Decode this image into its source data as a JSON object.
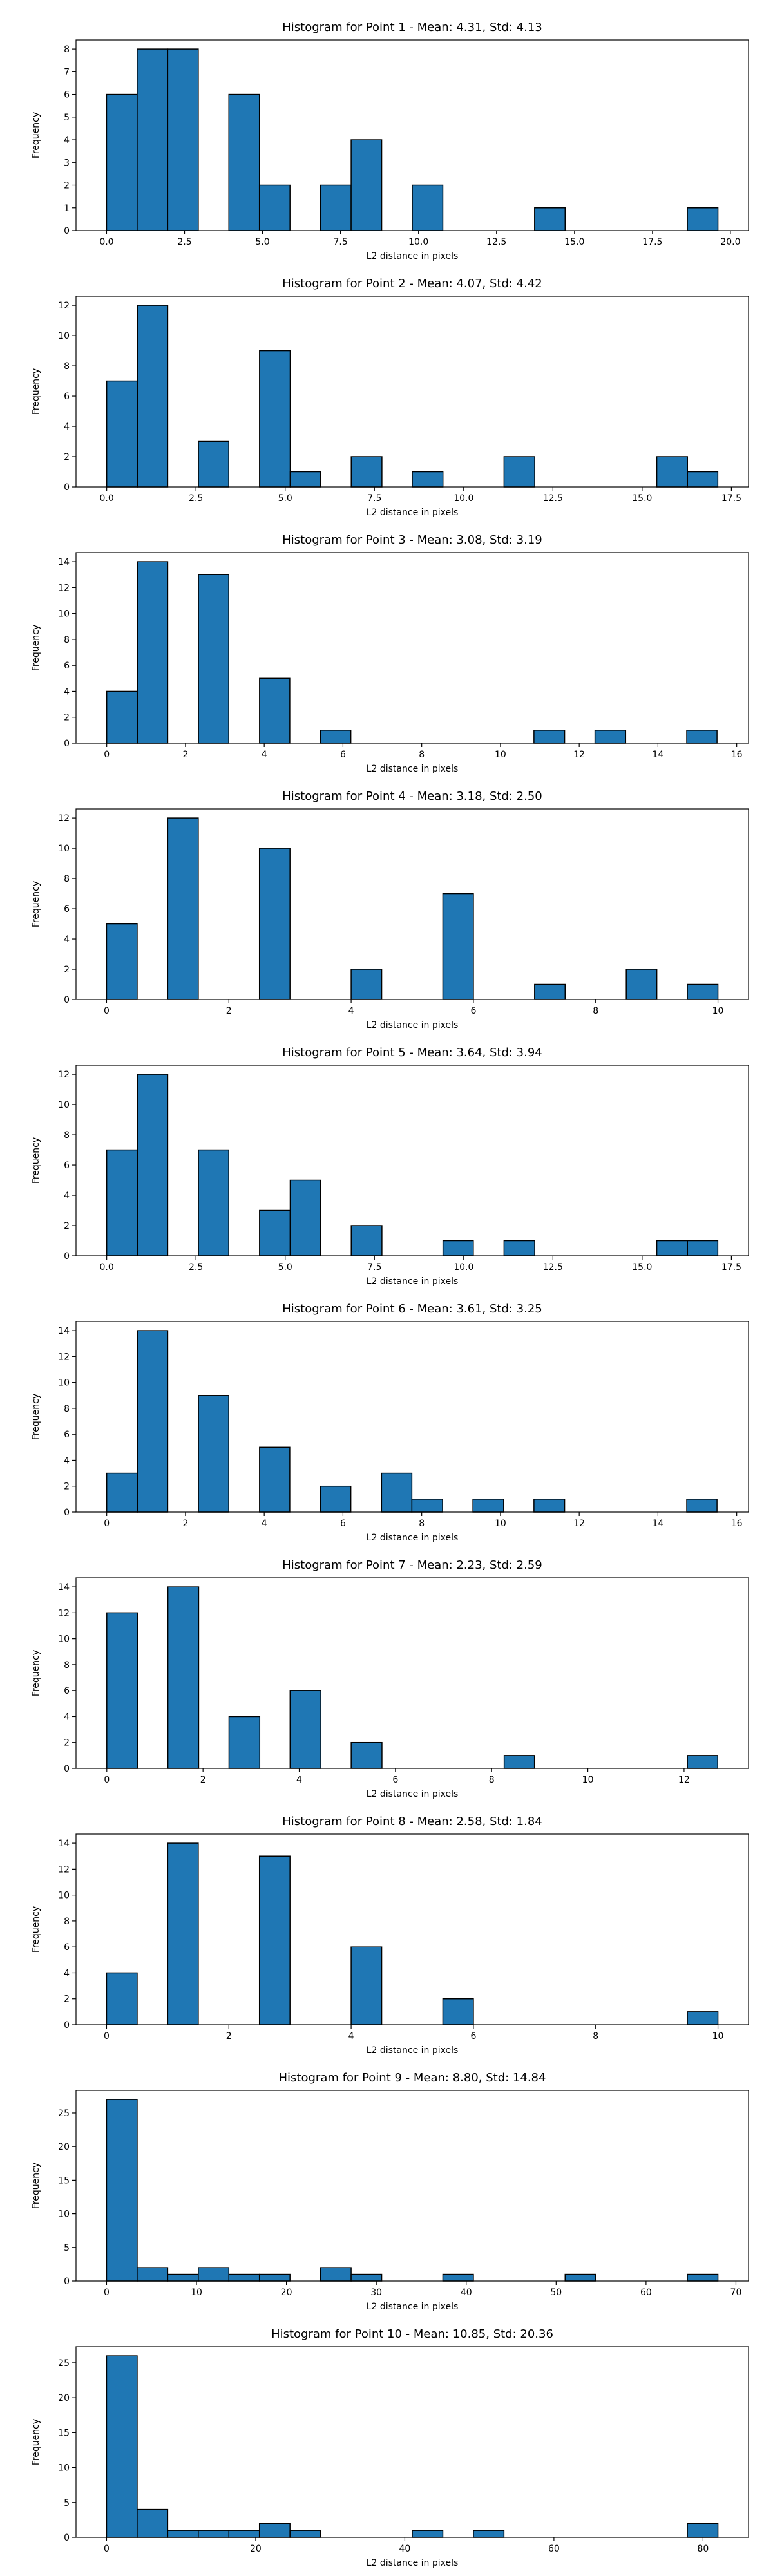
{
  "chart_data": [
    {
      "type": "bar",
      "title": "Histogram for Point 1 - Mean: 4.31, Std: 4.13",
      "xlabel": "L2 distance in pixels",
      "ylabel": "Frequency",
      "xlim": [
        -0.98,
        20.58
      ],
      "ylim": [
        0,
        8.4
      ],
      "xticks": [
        0,
        2.5,
        5,
        7.5,
        10,
        12.5,
        15,
        17.5,
        20
      ],
      "xtick_labels": [
        "0.0",
        "2.5",
        "5.0",
        "7.5",
        "10.0",
        "12.5",
        "15.0",
        "17.5",
        "20.0"
      ],
      "yticks": [
        0,
        1,
        2,
        3,
        4,
        5,
        6,
        7,
        8
      ],
      "ytick_labels": [
        "0",
        "1",
        "2",
        "3",
        "4",
        "5",
        "6",
        "7",
        "8"
      ],
      "bins": [
        {
          "x0": 0.0,
          "x1": 0.98,
          "count": 6
        },
        {
          "x0": 0.98,
          "x1": 1.96,
          "count": 8
        },
        {
          "x0": 1.96,
          "x1": 2.94,
          "count": 8
        },
        {
          "x0": 3.92,
          "x1": 4.9,
          "count": 6
        },
        {
          "x0": 4.9,
          "x1": 5.88,
          "count": 2
        },
        {
          "x0": 6.86,
          "x1": 7.84,
          "count": 2
        },
        {
          "x0": 7.84,
          "x1": 8.82,
          "count": 4
        },
        {
          "x0": 9.8,
          "x1": 10.78,
          "count": 2
        },
        {
          "x0": 13.72,
          "x1": 14.7,
          "count": 1
        },
        {
          "x0": 18.62,
          "x1": 19.6,
          "count": 1
        }
      ]
    },
    {
      "type": "bar",
      "title": "Histogram for Point 2 - Mean: 4.07, Std: 4.42",
      "xlabel": "L2 distance in pixels",
      "ylabel": "Frequency",
      "xlim": [
        -0.86,
        17.98
      ],
      "ylim": [
        0,
        12.6
      ],
      "xticks": [
        0,
        2.5,
        5,
        7.5,
        10,
        12.5,
        15,
        17.5
      ],
      "xtick_labels": [
        "0.0",
        "2.5",
        "5.0",
        "7.5",
        "10.0",
        "12.5",
        "15.0",
        "17.5"
      ],
      "yticks": [
        0,
        2,
        4,
        6,
        8,
        10,
        12
      ],
      "ytick_labels": [
        "0",
        "2",
        "4",
        "6",
        "8",
        "10",
        "12"
      ],
      "bins": [
        {
          "x0": 0.0,
          "x1": 0.86,
          "count": 7
        },
        {
          "x0": 0.86,
          "x1": 1.71,
          "count": 12
        },
        {
          "x0": 2.57,
          "x1": 3.42,
          "count": 3
        },
        {
          "x0": 4.28,
          "x1": 5.14,
          "count": 9
        },
        {
          "x0": 5.14,
          "x1": 5.99,
          "count": 1
        },
        {
          "x0": 6.85,
          "x1": 7.71,
          "count": 2
        },
        {
          "x0": 8.56,
          "x1": 9.42,
          "count": 1
        },
        {
          "x0": 11.13,
          "x1": 11.99,
          "count": 2
        },
        {
          "x0": 15.41,
          "x1": 16.27,
          "count": 2
        },
        {
          "x0": 16.27,
          "x1": 17.12,
          "count": 1
        }
      ]
    },
    {
      "type": "bar",
      "title": "Histogram for Point 3 - Mean: 3.08, Std: 3.19",
      "xlabel": "L2 distance in pixels",
      "ylabel": "Frequency",
      "xlim": [
        -0.78,
        16.3
      ],
      "ylim": [
        0,
        14.7
      ],
      "xticks": [
        0,
        2,
        4,
        6,
        8,
        10,
        12,
        14,
        16
      ],
      "xtick_labels": [
        "0",
        "2",
        "4",
        "6",
        "8",
        "10",
        "12",
        "14",
        "16"
      ],
      "yticks": [
        0,
        2,
        4,
        6,
        8,
        10,
        12,
        14
      ],
      "ytick_labels": [
        "0",
        "2",
        "4",
        "6",
        "8",
        "10",
        "12",
        "14"
      ],
      "bins": [
        {
          "x0": 0.0,
          "x1": 0.78,
          "count": 4
        },
        {
          "x0": 0.78,
          "x1": 1.55,
          "count": 14
        },
        {
          "x0": 2.33,
          "x1": 3.1,
          "count": 13
        },
        {
          "x0": 3.88,
          "x1": 4.65,
          "count": 5
        },
        {
          "x0": 5.43,
          "x1": 6.2,
          "count": 1
        },
        {
          "x0": 10.85,
          "x1": 11.63,
          "count": 1
        },
        {
          "x0": 12.4,
          "x1": 13.18,
          "count": 1
        },
        {
          "x0": 14.73,
          "x1": 15.5,
          "count": 1
        }
      ]
    },
    {
      "type": "bar",
      "title": "Histogram for Point 4 - Mean: 3.18, Std: 2.50",
      "xlabel": "L2 distance in pixels",
      "ylabel": "Frequency",
      "xlim": [
        -0.5,
        10.5
      ],
      "ylim": [
        0,
        12.6
      ],
      "xticks": [
        0,
        2,
        4,
        6,
        8,
        10
      ],
      "xtick_labels": [
        "0",
        "2",
        "4",
        "6",
        "8",
        "10"
      ],
      "yticks": [
        0,
        2,
        4,
        6,
        8,
        10,
        12
      ],
      "ytick_labels": [
        "0",
        "2",
        "4",
        "6",
        "8",
        "10",
        "12"
      ],
      "bins": [
        {
          "x0": 0.0,
          "x1": 0.5,
          "count": 5
        },
        {
          "x0": 1.0,
          "x1": 1.5,
          "count": 12
        },
        {
          "x0": 2.5,
          "x1": 3.0,
          "count": 10
        },
        {
          "x0": 4.0,
          "x1": 4.5,
          "count": 2
        },
        {
          "x0": 5.5,
          "x1": 6.0,
          "count": 7
        },
        {
          "x0": 7.0,
          "x1": 7.5,
          "count": 1
        },
        {
          "x0": 8.5,
          "x1": 9.0,
          "count": 2
        },
        {
          "x0": 9.5,
          "x1": 10.0,
          "count": 1
        }
      ]
    },
    {
      "type": "bar",
      "title": "Histogram for Point 5 - Mean: 3.64, Std: 3.94",
      "xlabel": "L2 distance in pixels",
      "ylabel": "Frequency",
      "xlim": [
        -0.86,
        17.98
      ],
      "ylim": [
        0,
        12.6
      ],
      "xticks": [
        0,
        2.5,
        5,
        7.5,
        10,
        12.5,
        15,
        17.5
      ],
      "xtick_labels": [
        "0.0",
        "2.5",
        "5.0",
        "7.5",
        "10.0",
        "12.5",
        "15.0",
        "17.5"
      ],
      "yticks": [
        0,
        2,
        4,
        6,
        8,
        10,
        12
      ],
      "ytick_labels": [
        "0",
        "2",
        "4",
        "6",
        "8",
        "10",
        "12"
      ],
      "bins": [
        {
          "x0": 0.0,
          "x1": 0.86,
          "count": 7
        },
        {
          "x0": 0.86,
          "x1": 1.71,
          "count": 12
        },
        {
          "x0": 2.57,
          "x1": 3.42,
          "count": 7
        },
        {
          "x0": 4.28,
          "x1": 5.14,
          "count": 3
        },
        {
          "x0": 5.14,
          "x1": 5.99,
          "count": 5
        },
        {
          "x0": 6.85,
          "x1": 7.71,
          "count": 2
        },
        {
          "x0": 9.42,
          "x1": 10.27,
          "count": 1
        },
        {
          "x0": 11.13,
          "x1": 11.99,
          "count": 1
        },
        {
          "x0": 15.41,
          "x1": 16.27,
          "count": 1
        },
        {
          "x0": 16.27,
          "x1": 17.12,
          "count": 1
        }
      ]
    },
    {
      "type": "bar",
      "title": "Histogram for Point 6 - Mean: 3.61, Std: 3.25",
      "xlabel": "L2 distance in pixels",
      "ylabel": "Frequency",
      "xlim": [
        -0.78,
        16.3
      ],
      "ylim": [
        0,
        14.7
      ],
      "xticks": [
        0,
        2,
        4,
        6,
        8,
        10,
        12,
        14,
        16
      ],
      "xtick_labels": [
        "0",
        "2",
        "4",
        "6",
        "8",
        "10",
        "12",
        "14",
        "16"
      ],
      "yticks": [
        0,
        2,
        4,
        6,
        8,
        10,
        12,
        14
      ],
      "ytick_labels": [
        "0",
        "2",
        "4",
        "6",
        "8",
        "10",
        "12",
        "14"
      ],
      "bins": [
        {
          "x0": 0.0,
          "x1": 0.78,
          "count": 3
        },
        {
          "x0": 0.78,
          "x1": 1.55,
          "count": 14
        },
        {
          "x0": 2.33,
          "x1": 3.1,
          "count": 9
        },
        {
          "x0": 3.88,
          "x1": 4.65,
          "count": 5
        },
        {
          "x0": 5.43,
          "x1": 6.2,
          "count": 2
        },
        {
          "x0": 6.98,
          "x1": 7.75,
          "count": 3
        },
        {
          "x0": 7.75,
          "x1": 8.53,
          "count": 1
        },
        {
          "x0": 9.3,
          "x1": 10.08,
          "count": 1
        },
        {
          "x0": 10.85,
          "x1": 11.63,
          "count": 1
        },
        {
          "x0": 14.73,
          "x1": 15.5,
          "count": 1
        }
      ]
    },
    {
      "type": "bar",
      "title": "Histogram for Point 7 - Mean: 2.23, Std: 2.59",
      "xlabel": "L2 distance in pixels",
      "ylabel": "Frequency",
      "xlim": [
        -0.64,
        13.34
      ],
      "ylim": [
        0,
        14.7
      ],
      "xticks": [
        0,
        2,
        4,
        6,
        8,
        10,
        12
      ],
      "xtick_labels": [
        "0",
        "2",
        "4",
        "6",
        "8",
        "10",
        "12"
      ],
      "yticks": [
        0,
        2,
        4,
        6,
        8,
        10,
        12,
        14
      ],
      "ytick_labels": [
        "0",
        "2",
        "4",
        "6",
        "8",
        "10",
        "12",
        "14"
      ],
      "bins": [
        {
          "x0": 0.0,
          "x1": 0.64,
          "count": 12
        },
        {
          "x0": 1.27,
          "x1": 1.91,
          "count": 14
        },
        {
          "x0": 2.54,
          "x1": 3.18,
          "count": 4
        },
        {
          "x0": 3.81,
          "x1": 4.45,
          "count": 6
        },
        {
          "x0": 5.08,
          "x1": 5.72,
          "count": 2
        },
        {
          "x0": 8.26,
          "x1": 8.89,
          "count": 1
        },
        {
          "x0": 12.07,
          "x1": 12.7,
          "count": 1
        }
      ]
    },
    {
      "type": "bar",
      "title": "Histogram for Point 8 - Mean: 2.58, Std: 1.84",
      "xlabel": "L2 distance in pixels",
      "ylabel": "Frequency",
      "xlim": [
        -0.5,
        10.5
      ],
      "ylim": [
        0,
        14.7
      ],
      "xticks": [
        0,
        2,
        4,
        6,
        8,
        10
      ],
      "xtick_labels": [
        "0",
        "2",
        "4",
        "6",
        "8",
        "10"
      ],
      "yticks": [
        0,
        2,
        4,
        6,
        8,
        10,
        12,
        14
      ],
      "ytick_labels": [
        "0",
        "2",
        "4",
        "6",
        "8",
        "10",
        "12",
        "14"
      ],
      "bins": [
        {
          "x0": 0.0,
          "x1": 0.5,
          "count": 4
        },
        {
          "x0": 1.0,
          "x1": 1.5,
          "count": 14
        },
        {
          "x0": 2.5,
          "x1": 3.0,
          "count": 13
        },
        {
          "x0": 4.0,
          "x1": 4.5,
          "count": 6
        },
        {
          "x0": 5.5,
          "x1": 6.0,
          "count": 2
        },
        {
          "x0": 9.5,
          "x1": 10.0,
          "count": 1
        }
      ]
    },
    {
      "type": "bar",
      "title": "Histogram for Point 9 - Mean: 8.80, Std: 14.84",
      "xlabel": "L2 distance in pixels",
      "ylabel": "Frequency",
      "xlim": [
        -3.4,
        71.4
      ],
      "ylim": [
        0,
        28.35
      ],
      "xticks": [
        0,
        10,
        20,
        30,
        40,
        50,
        60,
        70
      ],
      "xtick_labels": [
        "0",
        "10",
        "20",
        "30",
        "40",
        "50",
        "60",
        "70"
      ],
      "yticks": [
        0,
        5,
        10,
        15,
        20,
        25
      ],
      "ytick_labels": [
        "0",
        "5",
        "10",
        "15",
        "20",
        "25"
      ],
      "bins": [
        {
          "x0": 0.0,
          "x1": 3.4,
          "count": 27
        },
        {
          "x0": 3.4,
          "x1": 6.8,
          "count": 2
        },
        {
          "x0": 6.8,
          "x1": 10.2,
          "count": 1
        },
        {
          "x0": 10.2,
          "x1": 13.6,
          "count": 2
        },
        {
          "x0": 13.6,
          "x1": 17.0,
          "count": 1
        },
        {
          "x0": 17.0,
          "x1": 20.4,
          "count": 1
        },
        {
          "x0": 23.8,
          "x1": 27.2,
          "count": 2
        },
        {
          "x0": 27.2,
          "x1": 30.6,
          "count": 1
        },
        {
          "x0": 37.4,
          "x1": 40.8,
          "count": 1
        },
        {
          "x0": 51.0,
          "x1": 54.4,
          "count": 1
        },
        {
          "x0": 64.6,
          "x1": 68.0,
          "count": 1
        }
      ]
    },
    {
      "type": "bar",
      "title": "Histogram for Point 10 - Mean: 10.85, Std: 20.36",
      "xlabel": "L2 distance in pixels",
      "ylabel": "Frequency",
      "xlim": [
        -4.1,
        86.1
      ],
      "ylim": [
        0,
        27.3
      ],
      "xticks": [
        0,
        20,
        40,
        60,
        80
      ],
      "xtick_labels": [
        "0",
        "20",
        "40",
        "60",
        "80"
      ],
      "yticks": [
        0,
        5,
        10,
        15,
        20,
        25
      ],
      "ytick_labels": [
        "0",
        "5",
        "10",
        "15",
        "20",
        "25"
      ],
      "bins": [
        {
          "x0": 0.0,
          "x1": 4.1,
          "count": 26
        },
        {
          "x0": 4.1,
          "x1": 8.2,
          "count": 4
        },
        {
          "x0": 8.2,
          "x1": 12.3,
          "count": 1
        },
        {
          "x0": 12.3,
          "x1": 16.4,
          "count": 1
        },
        {
          "x0": 16.4,
          "x1": 20.5,
          "count": 1
        },
        {
          "x0": 20.5,
          "x1": 24.6,
          "count": 2
        },
        {
          "x0": 24.6,
          "x1": 28.7,
          "count": 1
        },
        {
          "x0": 41.0,
          "x1": 45.1,
          "count": 1
        },
        {
          "x0": 49.2,
          "x1": 53.3,
          "count": 1
        },
        {
          "x0": 77.9,
          "x1": 82.0,
          "count": 2
        }
      ]
    }
  ],
  "style": {
    "bar_fill": "#1f77b4",
    "bar_edge": "#000000",
    "background": "#ffffff"
  }
}
